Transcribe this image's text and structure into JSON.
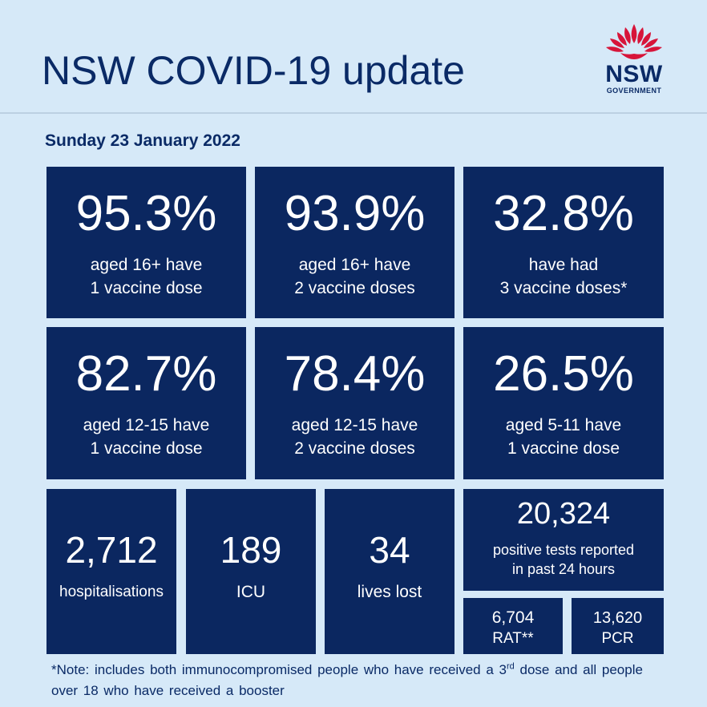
{
  "header": {
    "title": "NSW COVID-19 update",
    "logo": {
      "wordmark": "NSW",
      "subtitle": "GOVERNMENT",
      "icon": "waratah-icon",
      "flower_color": "#d7153a"
    }
  },
  "date": "Sunday 23 January 2022",
  "colors": {
    "background": "#d6e9f8",
    "tile": "#0b2760",
    "text_dark": "#0a2a66"
  },
  "vaccination": [
    {
      "value": "95.3%",
      "line1": "aged 16+ have",
      "line2": "1 vaccine dose"
    },
    {
      "value": "93.9%",
      "line1": "aged 16+ have",
      "line2": "2 vaccine doses"
    },
    {
      "value": "32.8%",
      "line1": "have had",
      "line2": "3 vaccine doses*"
    },
    {
      "value": "82.7%",
      "line1": "aged 12-15 have",
      "line2": "1 vaccine dose"
    },
    {
      "value": "78.4%",
      "line1": "aged 12-15 have",
      "line2": "2 vaccine doses"
    },
    {
      "value": "26.5%",
      "line1": "aged 5-11 have",
      "line2": "1 vaccine dose"
    }
  ],
  "stats": {
    "hospitalisations": {
      "value": "2,712",
      "label": "hospitalisations"
    },
    "icu": {
      "value": "189",
      "label": "ICU"
    },
    "deaths": {
      "value": "34",
      "label": "lives lost"
    },
    "positive": {
      "value": "20,324",
      "line1": "positive tests reported",
      "line2": "in past 24 hours"
    },
    "rat": {
      "value": "6,704",
      "label": "RAT**"
    },
    "pcr": {
      "value": "13,620",
      "label": "PCR"
    }
  },
  "note": {
    "before": "*Note: includes both immunocompromised people who have received a 3",
    "sup": "rd",
    "after": " dose and all people over 18 who have received a booster"
  }
}
